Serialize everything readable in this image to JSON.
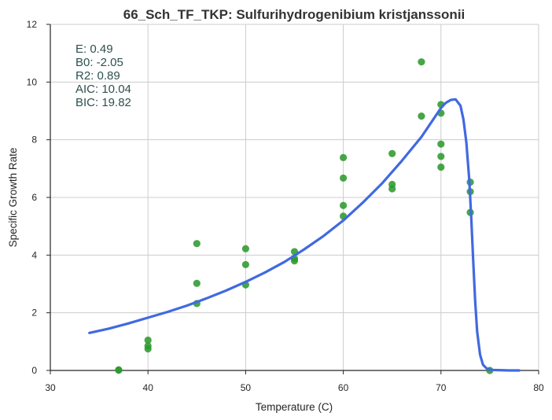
{
  "chart_data": {
    "type": "scatter",
    "title": "66_Sch_TF_TKP: Sulfurihydrogenibium kristjanssonii",
    "xlabel": "Temperature (C)",
    "ylabel": "Specific Growth Rate",
    "xlim": [
      30,
      80
    ],
    "ylim": [
      0,
      12
    ],
    "xticks": [
      "30",
      "40",
      "50",
      "60",
      "70",
      "80"
    ],
    "yticks": [
      "0",
      "2",
      "4",
      "6",
      "8",
      "10",
      "12"
    ],
    "grid": true,
    "stats": [
      "E:  0.49",
      "B0:  -2.05",
      "R2:  0.89",
      "AIC: 10.04",
      "BIC: 19.82"
    ],
    "point_color": "#2e9a2e",
    "line_color": "#4169e1",
    "points": {
      "x": [
        37,
        37,
        40,
        40,
        40,
        45,
        45,
        45,
        50,
        50,
        50,
        55,
        55,
        55,
        60,
        60,
        60,
        60,
        65,
        65,
        65,
        68,
        68,
        70,
        70,
        70,
        70,
        70,
        73,
        73,
        73,
        75
      ],
      "y": [
        0.02,
        0.01,
        1.05,
        0.85,
        0.75,
        4.4,
        3.02,
        2.32,
        4.22,
        3.67,
        2.97,
        4.12,
        3.88,
        3.8,
        7.38,
        6.67,
        5.72,
        5.35,
        7.52,
        6.45,
        6.3,
        10.7,
        8.82,
        9.22,
        8.92,
        7.85,
        7.42,
        7.05,
        6.53,
        6.2,
        5.48,
        0.0
      ]
    },
    "fit": {
      "x": [
        34,
        36,
        38,
        40,
        42,
        44,
        46,
        48,
        50,
        52,
        54,
        56,
        58,
        60,
        62,
        64,
        66,
        68,
        69,
        70,
        70.5,
        71,
        71.5,
        72,
        72.3,
        72.6,
        72.9,
        73.1,
        73.3,
        73.5,
        73.7,
        74,
        74.3,
        74.7,
        75.2,
        76,
        77,
        78
      ],
      "y": [
        1.3,
        1.45,
        1.63,
        1.83,
        2.03,
        2.25,
        2.5,
        2.77,
        3.07,
        3.4,
        3.77,
        4.2,
        4.67,
        5.2,
        5.82,
        6.5,
        7.27,
        8.1,
        8.6,
        9.1,
        9.28,
        9.38,
        9.4,
        9.18,
        8.7,
        7.9,
        6.6,
        5.3,
        3.8,
        2.4,
        1.35,
        0.55,
        0.2,
        0.06,
        0.02,
        0.01,
        0.0,
        0.0
      ]
    }
  }
}
